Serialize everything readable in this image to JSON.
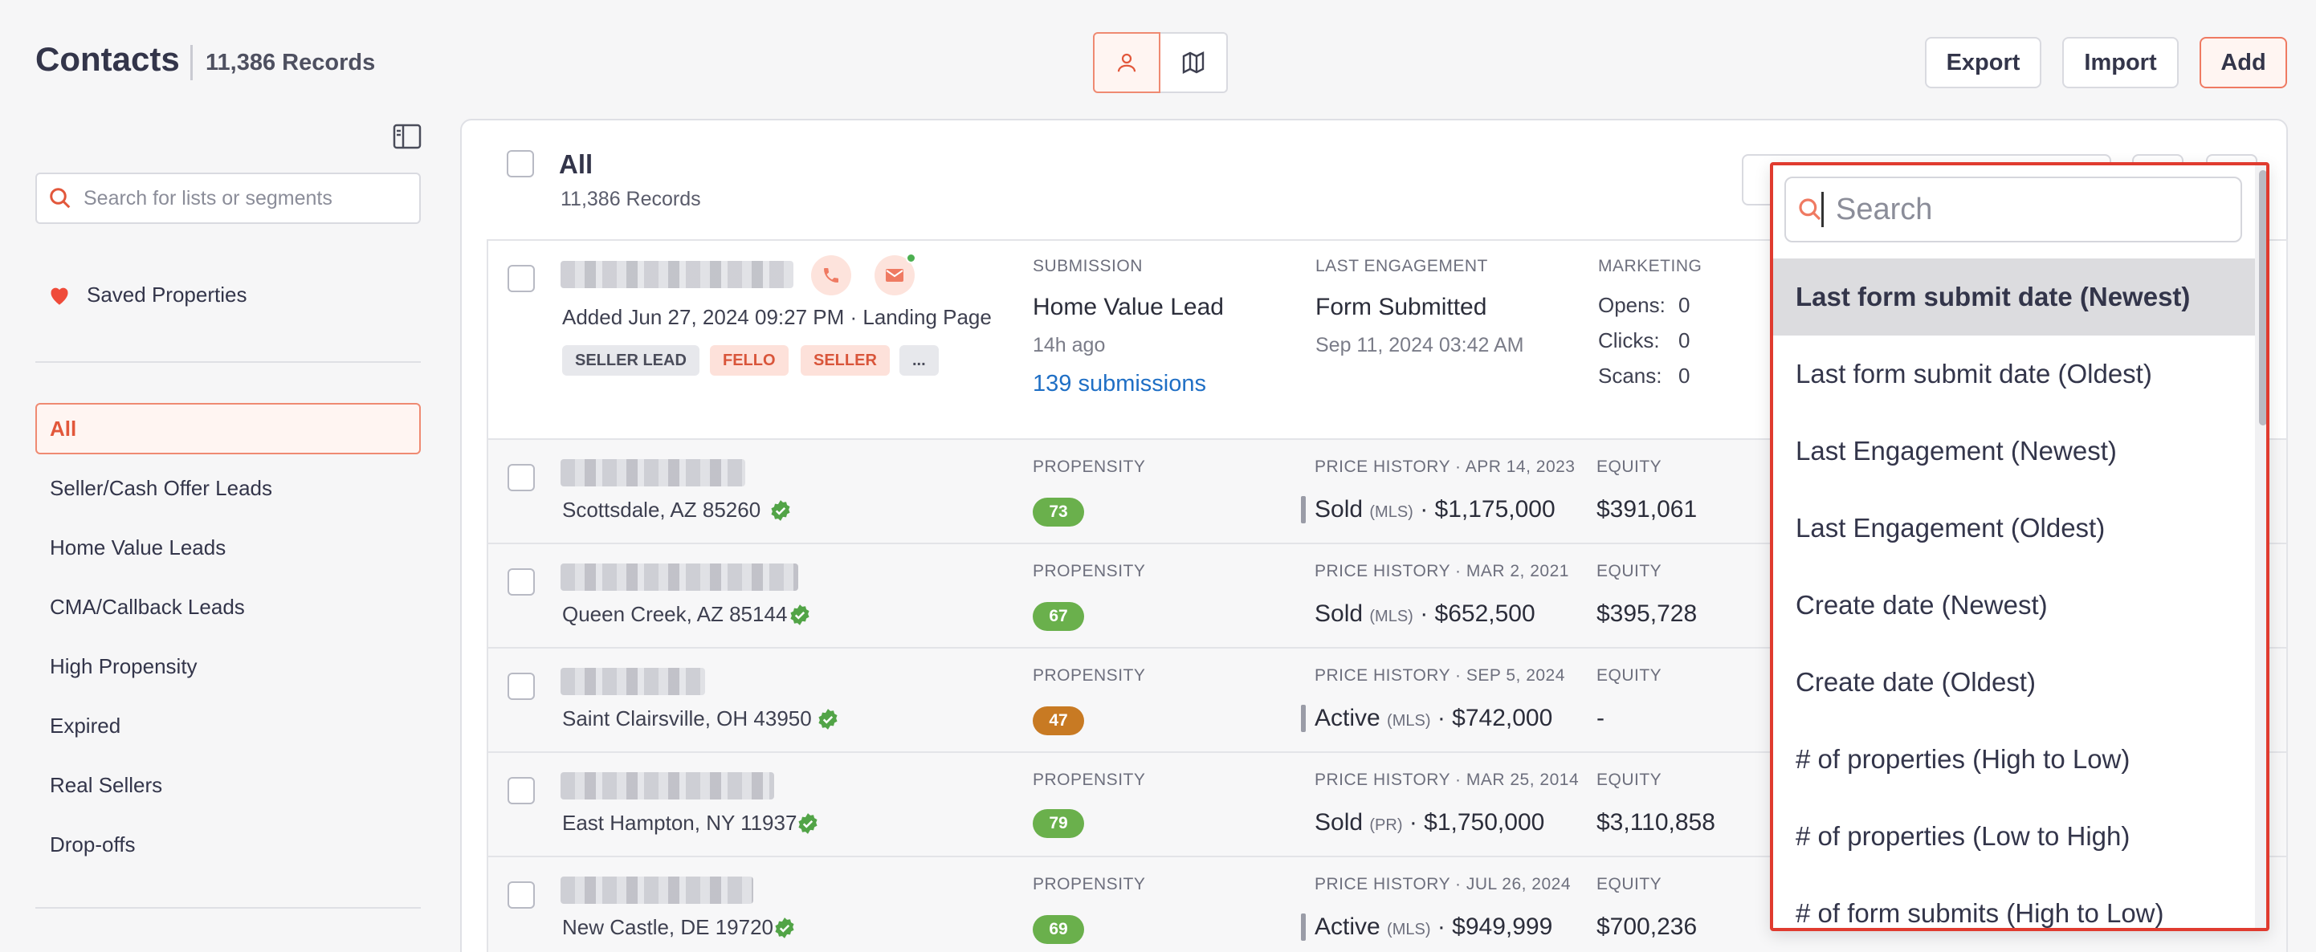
{
  "header": {
    "title": "Contacts",
    "record_count": "11,386 Records",
    "export_label": "Export",
    "import_label": "Import",
    "add_label": "Add"
  },
  "sidebar": {
    "search_placeholder": "Search for lists or segments",
    "saved_label": "Saved Properties",
    "items": [
      {
        "label": "All"
      },
      {
        "label": "Seller/Cash Offer Leads"
      },
      {
        "label": "Home Value Leads"
      },
      {
        "label": "CMA/Callback Leads"
      },
      {
        "label": "High Propensity"
      },
      {
        "label": "Expired"
      },
      {
        "label": "Real Sellers"
      },
      {
        "label": "Drop-offs"
      }
    ]
  },
  "list": {
    "title": "All",
    "record_count": "11,386 Records"
  },
  "first_contact": {
    "added": "Added Jun 27, 2024 09:27 PM  ·  Landing Page",
    "tags": [
      "SELLER LEAD",
      "FELLO",
      "SELLER",
      "..."
    ],
    "submission_label": "SUBMISSION",
    "submission_value": "Home Value Lead",
    "submission_time": "14h ago",
    "submission_link": "139 submissions",
    "engagement_label": "LAST ENGAGEMENT",
    "engagement_value": "Form Submitted",
    "engagement_time": "Sep 11, 2024 03:42 AM",
    "marketing_label": "MARKETING",
    "opens_label": "Opens:",
    "opens": "0",
    "clicks_label": "Clicks:",
    "clicks": "0",
    "scans_label": "Scans:",
    "scans": "0"
  },
  "rows": [
    {
      "address": "Scottsdale, AZ 85260",
      "propensity_label": "PROPENSITY",
      "propensity": "73",
      "propensity_color": "#6ab04c",
      "history_label": "PRICE HISTORY · APR 14, 2023",
      "status": "Sold",
      "source": "(MLS)",
      "price": "· $1,175,000",
      "equity_label": "EQUITY",
      "equity": "$391,061"
    },
    {
      "address": "Queen Creek, AZ 85144",
      "propensity_label": "PROPENSITY",
      "propensity": "67",
      "propensity_color": "#6ab04c",
      "history_label": "PRICE HISTORY · MAR 2, 2021",
      "status": "Sold",
      "source": "(MLS)",
      "price": "· $652,500",
      "equity_label": "EQUITY",
      "equity": "$395,728"
    },
    {
      "address": "Saint Clairsville, OH 43950",
      "propensity_label": "PROPENSITY",
      "propensity": "47",
      "propensity_color": "#c87a23",
      "history_label": "PRICE HISTORY · SEP 5, 2024",
      "status": "Active",
      "source": "(MLS)",
      "price": "· $742,000",
      "equity_label": "EQUITY",
      "equity": "-"
    },
    {
      "address": "East Hampton, NY 11937",
      "propensity_label": "PROPENSITY",
      "propensity": "79",
      "propensity_color": "#6ab04c",
      "history_label": "PRICE HISTORY · MAR 25, 2014",
      "status": "Sold",
      "source": "(PR)",
      "price": "· $1,750,000",
      "equity_label": "EQUITY",
      "equity": "$3,110,858"
    },
    {
      "address": "New Castle, DE 19720",
      "propensity_label": "PROPENSITY",
      "propensity": "69",
      "propensity_color": "#6ab04c",
      "history_label": "PRICE HISTORY · JUL 26, 2024",
      "status": "Active",
      "source": "(MLS)",
      "price": "· $949,999",
      "equity_label": "EQUITY",
      "equity": "$700,236"
    }
  ],
  "sort_dropdown": {
    "search_placeholder": "Search",
    "options": [
      "Last form submit date (Newest)",
      "Last form submit date (Oldest)",
      "Last Engagement (Newest)",
      "Last Engagement (Oldest)",
      "Create date (Newest)",
      "Create date (Oldest)",
      "# of properties (High to Low)",
      "# of properties (Low to High)",
      "# of form submits (High to Low)"
    ],
    "selected_index": 0
  },
  "colors": {
    "accent": "#e2573b",
    "dropdown_border": "#e03b2f",
    "link": "#1f6fc5",
    "propensity_high": "#6ab04c",
    "propensity_mid": "#c87a23"
  },
  "icons": [
    "contact-view-icon",
    "map-view-icon",
    "sidebar-toggle-icon",
    "search-icon",
    "heart-icon",
    "phone-icon",
    "email-icon",
    "verified-icon"
  ]
}
